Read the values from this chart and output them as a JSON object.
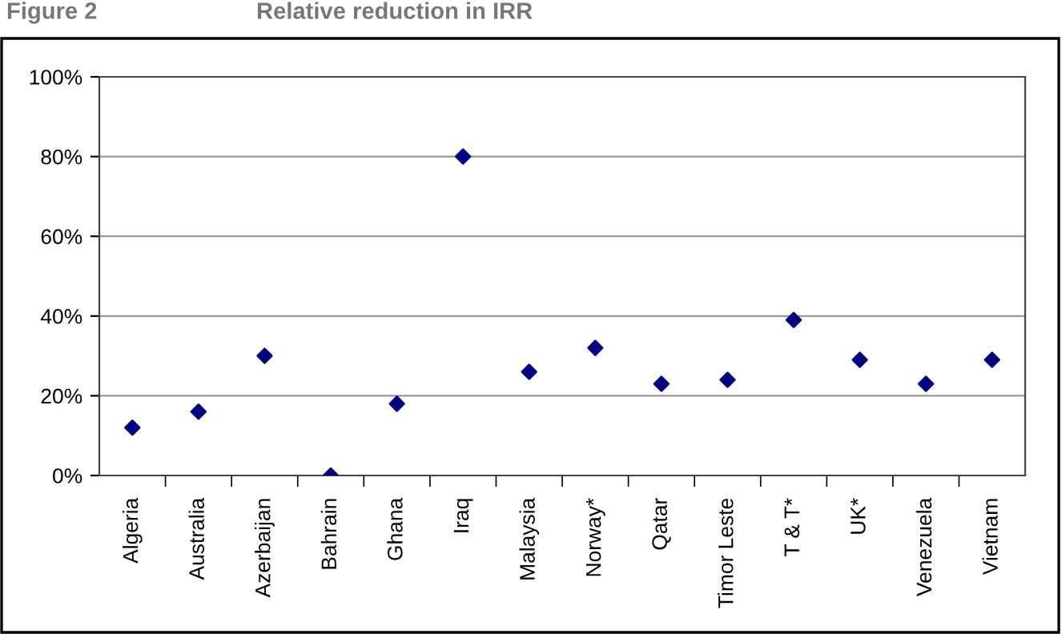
{
  "chart_data": {
    "type": "scatter",
    "title": "Relative reduction in IRR",
    "annotations": [
      "Figure 2"
    ],
    "categories": [
      "Algeria",
      "Australia",
      "Azerbaijan",
      "Bahrain",
      "Ghana",
      "Iraq",
      "Malaysia",
      "Norway*",
      "Qatar",
      "Timor Leste",
      "T & T*",
      "UK*",
      "Venezuela",
      "Vietnam"
    ],
    "series": [
      {
        "color": "#000080",
        "values": [
          12,
          16,
          30,
          0,
          18,
          80,
          26,
          32,
          23,
          24,
          39,
          29,
          23,
          29
        ]
      }
    ],
    "ylim": [
      0,
      100
    ],
    "yticks": [
      {
        "value": 0,
        "label": "0%"
      },
      {
        "value": 20,
        "label": "20%"
      },
      {
        "value": 40,
        "label": "40%"
      },
      {
        "value": 60,
        "label": "60%"
      },
      {
        "value": 80,
        "label": "80%"
      },
      {
        "value": 100,
        "label": "100%"
      }
    ],
    "grid": "y",
    "marker": "diamond"
  }
}
